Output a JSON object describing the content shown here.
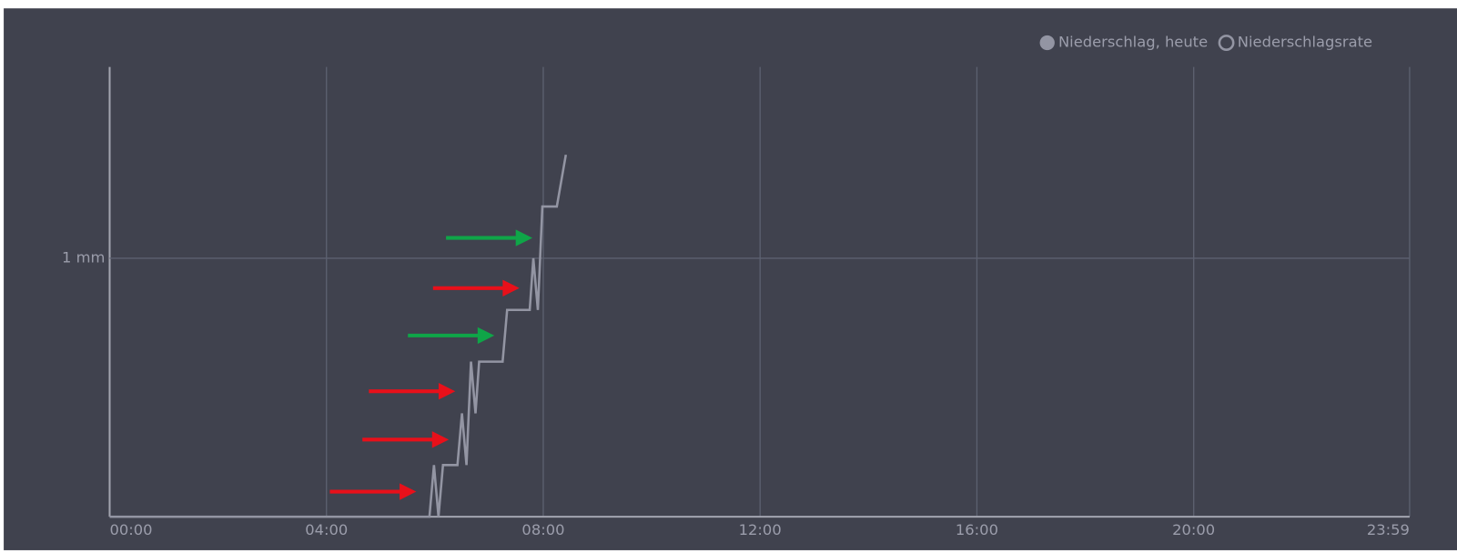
{
  "chart_data": {
    "type": "line",
    "x": [
      0,
      354,
      359,
      364,
      369,
      385,
      390,
      395,
      400,
      405,
      409,
      435,
      440,
      465,
      469,
      474,
      479,
      495,
      505
    ],
    "series": [
      {
        "name": "Niederschlag, heute",
        "color": "#9395a3",
        "values": [
          0,
          0,
          0.2,
          0,
          0.2,
          0.2,
          0.4,
          0.2,
          0.6,
          0.4,
          0.6,
          0.6,
          0.8,
          0.8,
          1.0,
          0.8,
          1.2,
          1.2,
          1.4
        ]
      },
      {
        "name": "Niederschlagsrate",
        "color": "#9395a3",
        "values": [
          null,
          null,
          null,
          null,
          null,
          null,
          null,
          null,
          null,
          null,
          null,
          null,
          null,
          null,
          null,
          null,
          null,
          null,
          null
        ]
      }
    ],
    "xlim": [
      0,
      1439
    ],
    "xticks": [
      {
        "value": 0,
        "label": "00:00"
      },
      {
        "value": 240,
        "label": "04:00"
      },
      {
        "value": 480,
        "label": "08:00"
      },
      {
        "value": 720,
        "label": "12:00"
      },
      {
        "value": 960,
        "label": "16:00"
      },
      {
        "value": 1200,
        "label": "20:00"
      },
      {
        "value": 1439,
        "label": "23:59"
      }
    ],
    "ylim": [
      0,
      1.74
    ],
    "yticks": [
      {
        "value": 1,
        "label": "1 mm"
      }
    ],
    "grid": true,
    "legend": "top-right"
  }
}
